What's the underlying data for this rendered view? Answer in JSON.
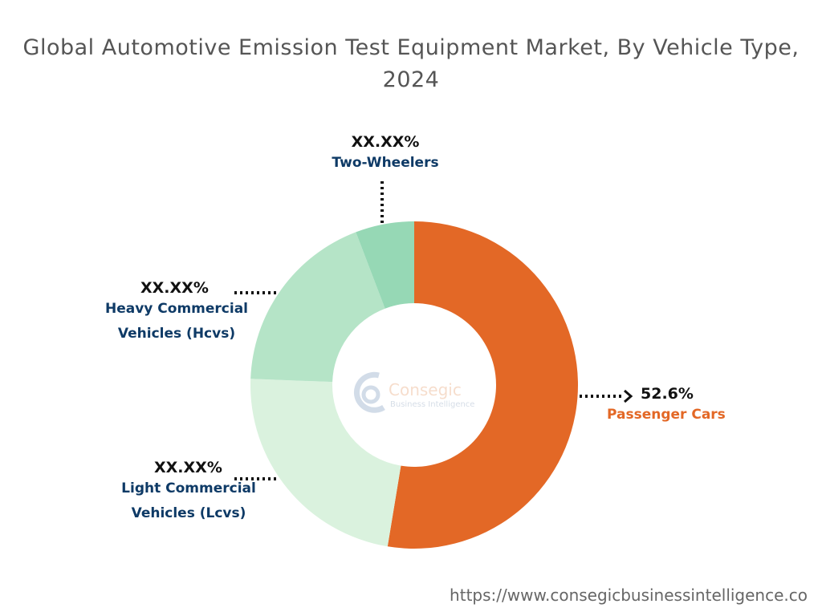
{
  "title": "Global Automotive Emission Test Equipment Market, By Vehicle Type, 2024",
  "footer_url": "https://www.consegicbusinessintelligence.co",
  "watermark": {
    "brand": "Consegic",
    "tagline": "Business Intelligence"
  },
  "chart_data": {
    "type": "pie",
    "variant": "donut",
    "title": "Global Automotive Emission Test Equipment Market, By Vehicle Type, 2024",
    "slices": [
      {
        "name": "Passenger Cars",
        "label": "52.6%",
        "value": 52.6,
        "color": "#E36826",
        "label_color": "#E36826"
      },
      {
        "name": "Light Commercial Vehicles (Lcvs)",
        "label": "XX.XX%",
        "value": 23.0,
        "color": "#DAF2DE",
        "label_color": "#0E3A66"
      },
      {
        "name": "Heavy Commercial Vehicles (Hcvs)",
        "label": "XX.XX%",
        "value": 18.6,
        "color": "#B5E4C7",
        "label_color": "#0E3A66"
      },
      {
        "name": "Two-Wheelers",
        "label": "XX.XX%",
        "value": 5.8,
        "color": "#96D8B5",
        "label_color": "#0E3A66"
      }
    ],
    "start_angle": "12 o'clock",
    "direction": "clockwise",
    "legend": "none"
  }
}
